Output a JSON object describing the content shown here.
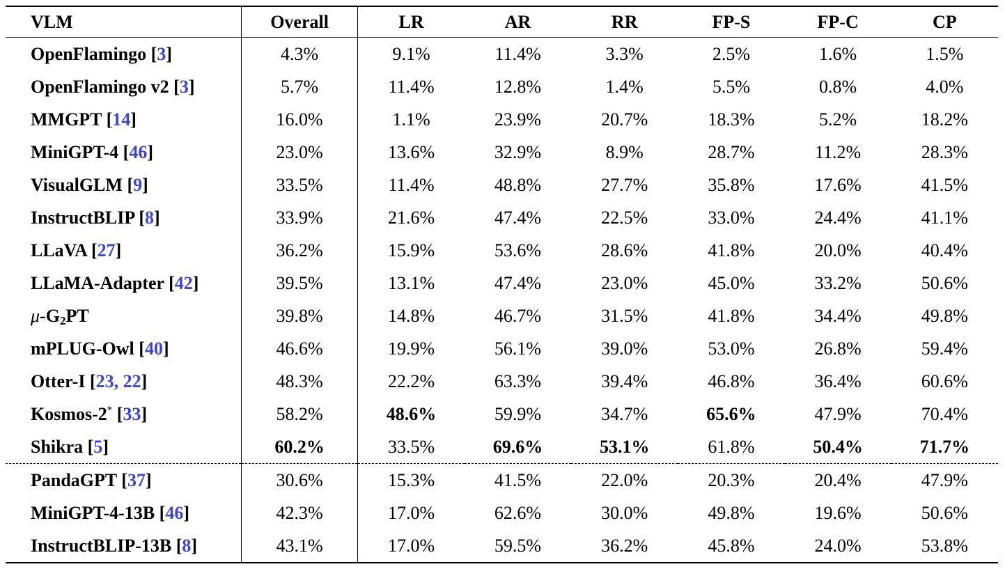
{
  "table": {
    "headers": [
      "VLM",
      "Overall",
      "LR",
      "AR",
      "RR",
      "FP-S",
      "FP-C",
      "CP"
    ],
    "group1": [
      {
        "name": "OpenFlamingo",
        "cite": "3",
        "values": [
          "4.3%",
          "9.1%",
          "11.4%",
          "3.3%",
          "2.5%",
          "1.6%",
          "1.5%"
        ]
      },
      {
        "name": "OpenFlamingo v2",
        "cite": "3",
        "values": [
          "5.7%",
          "11.4%",
          "12.8%",
          "1.4%",
          "5.5%",
          "0.8%",
          "4.0%"
        ]
      },
      {
        "name": "MMGPT",
        "cite": "14",
        "values": [
          "16.0%",
          "1.1%",
          "23.9%",
          "20.7%",
          "18.3%",
          "5.2%",
          "18.2%"
        ]
      },
      {
        "name": "MiniGPT-4",
        "cite": "46",
        "values": [
          "23.0%",
          "13.6%",
          "32.9%",
          "8.9%",
          "28.7%",
          "11.2%",
          "28.3%"
        ]
      },
      {
        "name": "VisualGLM",
        "cite": "9",
        "values": [
          "33.5%",
          "11.4%",
          "48.8%",
          "27.7%",
          "35.8%",
          "17.6%",
          "41.5%"
        ]
      },
      {
        "name": "InstructBLIP",
        "cite": "8",
        "values": [
          "33.9%",
          "21.6%",
          "47.4%",
          "22.5%",
          "33.0%",
          "24.4%",
          "41.1%"
        ]
      },
      {
        "name": "LLaVA",
        "cite": "27",
        "values": [
          "36.2%",
          "15.9%",
          "53.6%",
          "28.6%",
          "41.8%",
          "20.0%",
          "40.4%"
        ]
      },
      {
        "name": "LLaMA-Adapter",
        "cite": "42",
        "values": [
          "39.5%",
          "13.1%",
          "47.4%",
          "23.0%",
          "45.0%",
          "33.2%",
          "50.6%"
        ]
      },
      {
        "name_mu": "μ",
        "name_a": "-G",
        "name_sub": "2",
        "name_b": "PT",
        "values": [
          "39.8%",
          "14.8%",
          "46.7%",
          "31.5%",
          "41.8%",
          "34.4%",
          "49.8%"
        ]
      },
      {
        "name": "mPLUG-Owl",
        "cite": "40",
        "values": [
          "46.6%",
          "19.9%",
          "56.1%",
          "39.0%",
          "53.0%",
          "26.8%",
          "59.4%"
        ]
      },
      {
        "name": "Otter-I",
        "cite": "23, 22",
        "values": [
          "48.3%",
          "22.2%",
          "63.3%",
          "39.4%",
          "46.8%",
          "36.4%",
          "60.6%"
        ]
      },
      {
        "name": "Kosmos-2",
        "sup": "*",
        "cite": "33",
        "values": [
          "58.2%",
          "48.6%",
          "59.9%",
          "34.7%",
          "65.6%",
          "47.9%",
          "70.4%"
        ]
      },
      {
        "name": "Shikra",
        "cite": "5",
        "values": [
          "60.2%",
          "33.5%",
          "69.6%",
          "53.1%",
          "61.8%",
          "50.4%",
          "71.7%"
        ]
      }
    ],
    "group2": [
      {
        "name": "PandaGPT",
        "cite": "37",
        "values": [
          "30.6%",
          "15.3%",
          "41.5%",
          "22.0%",
          "20.3%",
          "20.4%",
          "47.9%"
        ]
      },
      {
        "name": "MiniGPT-4-13B",
        "cite": "46",
        "values": [
          "42.3%",
          "17.0%",
          "62.6%",
          "30.0%",
          "49.8%",
          "19.6%",
          "50.6%"
        ]
      },
      {
        "name": "InstructBLIP-13B",
        "cite": "8",
        "values": [
          "43.1%",
          "17.0%",
          "59.5%",
          "36.2%",
          "45.8%",
          "24.0%",
          "53.8%"
        ]
      }
    ]
  }
}
